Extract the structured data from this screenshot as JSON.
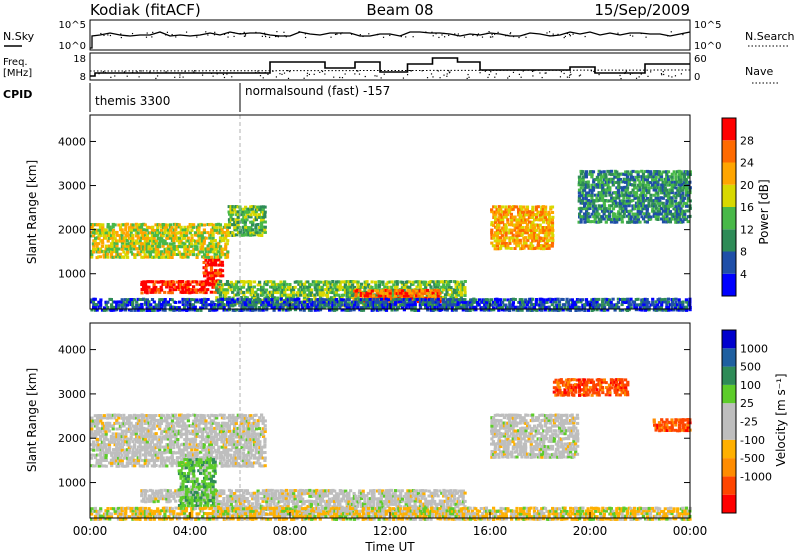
{
  "header": {
    "station": "Kodiak (fitACF)",
    "beam": "Beam 08",
    "date": "15/Sep/2009"
  },
  "panels": {
    "nsky": {
      "label": "N.Sky",
      "ticks_left": [
        "10^5",
        "10^0"
      ],
      "ticks_right": [
        "10^5",
        "10^0"
      ],
      "right_label": "N.Search"
    },
    "freq": {
      "label_line1": "Freq.",
      "label_line2": "[MHz]",
      "ticks_left": [
        "18",
        "8"
      ],
      "ticks_right": [
        "60",
        "0"
      ],
      "right_label": "Nave"
    },
    "cpid": {
      "label": "CPID",
      "entries": [
        "themis 3300",
        "normalsound (fast) -157"
      ]
    }
  },
  "colors": {
    "power": [
      "#0000ff",
      "#1f4fa8",
      "#2e8b57",
      "#48b848",
      "#d8d800",
      "#ffa500",
      "#ff6a00",
      "#ff0000"
    ],
    "velocity": [
      "#ff0000",
      "#ff4500",
      "#ff8c00",
      "#ffb000",
      "#bebebe",
      "#bebebe",
      "#5dcc2a",
      "#2e8b57",
      "#1e5fa0",
      "#0000cd"
    ]
  },
  "chart_data": [
    {
      "type": "heatmap",
      "quantity": "power",
      "ylabel": "Slant Range [km]",
      "yticks": [
        "1000",
        "2000",
        "3000",
        "4000"
      ],
      "ylim": [
        200,
        4600
      ],
      "xlim": [
        0,
        24
      ],
      "colorbar_label": "Power [dB]",
      "colorbar_ticks": [
        "4",
        "8",
        "12",
        "16",
        "20",
        "24",
        "28"
      ],
      "colorbar_range": [
        0,
        32
      ],
      "features": [
        {
          "hours": [
            2.0,
            5.2
          ],
          "range_km": [
            600,
            900
          ],
          "level": 31
        },
        {
          "hours": [
            4.5,
            5.3
          ],
          "range_km": [
            800,
            1400
          ],
          "level": 30
        },
        {
          "hours": [
            0.0,
            5.5
          ],
          "range_km": [
            1400,
            2200
          ],
          "level": 18
        },
        {
          "hours": [
            5.5,
            7.0
          ],
          "range_km": [
            1900,
            2600
          ],
          "level": 12
        },
        {
          "hours": [
            5.0,
            15.0
          ],
          "range_km": [
            300,
            900
          ],
          "level": 14
        },
        {
          "hours": [
            10.5,
            14.0
          ],
          "range_km": [
            400,
            700
          ],
          "level": 24
        },
        {
          "hours": [
            16.0,
            18.5
          ],
          "range_km": [
            1600,
            2600
          ],
          "level": 20
        },
        {
          "hours": [
            19.5,
            24.0
          ],
          "range_km": [
            2200,
            3400
          ],
          "level": 10
        },
        {
          "hours": [
            0.0,
            24.0
          ],
          "range_km": [
            200,
            500
          ],
          "level": 6
        }
      ]
    },
    {
      "type": "heatmap",
      "quantity": "velocity",
      "ylabel": "Slant Range [km]",
      "yticks": [
        "1000",
        "2000",
        "3000",
        "4000"
      ],
      "ylim": [
        200,
        4600
      ],
      "xlim": [
        0,
        24
      ],
      "xlabel": "Time UT",
      "xticks": [
        "00:00",
        "04:00",
        "08:00",
        "12:00",
        "16:00",
        "20:00",
        "00:00"
      ],
      "colorbar_label": "Velocity [m s⁻¹]",
      "colorbar_ticks": [
        "1000",
        "500",
        "100",
        "25",
        "-25",
        "-100",
        "-500",
        "-1000"
      ],
      "features": [
        {
          "hours": [
            0.0,
            7.0
          ],
          "range_km": [
            1400,
            2600
          ],
          "velocity": 0
        },
        {
          "hours": [
            2.0,
            5.0
          ],
          "range_km": [
            600,
            900
          ],
          "velocity": 0
        },
        {
          "hours": [
            3.5,
            5.0
          ],
          "range_km": [
            500,
            1600
          ],
          "velocity": 60
        },
        {
          "hours": [
            5.0,
            15.0
          ],
          "range_km": [
            300,
            900
          ],
          "velocity": 0
        },
        {
          "hours": [
            16.0,
            19.5
          ],
          "range_km": [
            1600,
            2600
          ],
          "velocity": 0
        },
        {
          "hours": [
            18.5,
            21.5
          ],
          "range_km": [
            3000,
            3400
          ],
          "velocity": -300
        },
        {
          "hours": [
            22.5,
            24.0
          ],
          "range_km": [
            2200,
            2500
          ],
          "velocity": -300
        },
        {
          "hours": [
            0.0,
            24.0
          ],
          "range_km": [
            200,
            500
          ],
          "velocity": -80
        }
      ]
    }
  ]
}
